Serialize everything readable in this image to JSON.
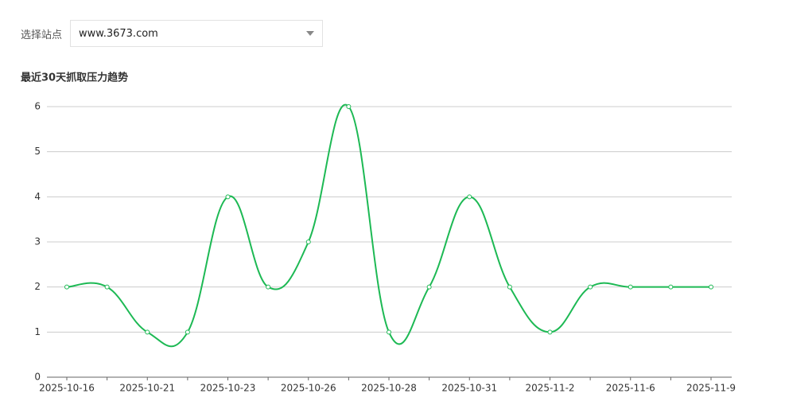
{
  "form": {
    "label": "选择站点",
    "selected": "www.3673.com"
  },
  "chart_data": {
    "type": "line",
    "title": "最近30天抓取压力趋势",
    "categories": [
      "2025-10-16",
      null,
      "2025-10-21",
      null,
      "2025-10-23",
      null,
      "2025-10-26",
      null,
      "2025-10-28",
      null,
      "2025-10-31",
      null,
      "2025-11-2",
      null,
      "2025-11-6",
      null,
      "2025-11-9"
    ],
    "values": [
      2,
      2,
      1,
      1,
      4,
      2,
      3,
      6,
      1,
      2,
      4,
      2,
      1,
      2,
      2,
      2,
      2
    ],
    "color": "#1db954",
    "ylim": [
      0,
      6
    ],
    "yticks": [
      0,
      1,
      2,
      3,
      4,
      5,
      6
    ],
    "grid": true,
    "smooth": true
  }
}
